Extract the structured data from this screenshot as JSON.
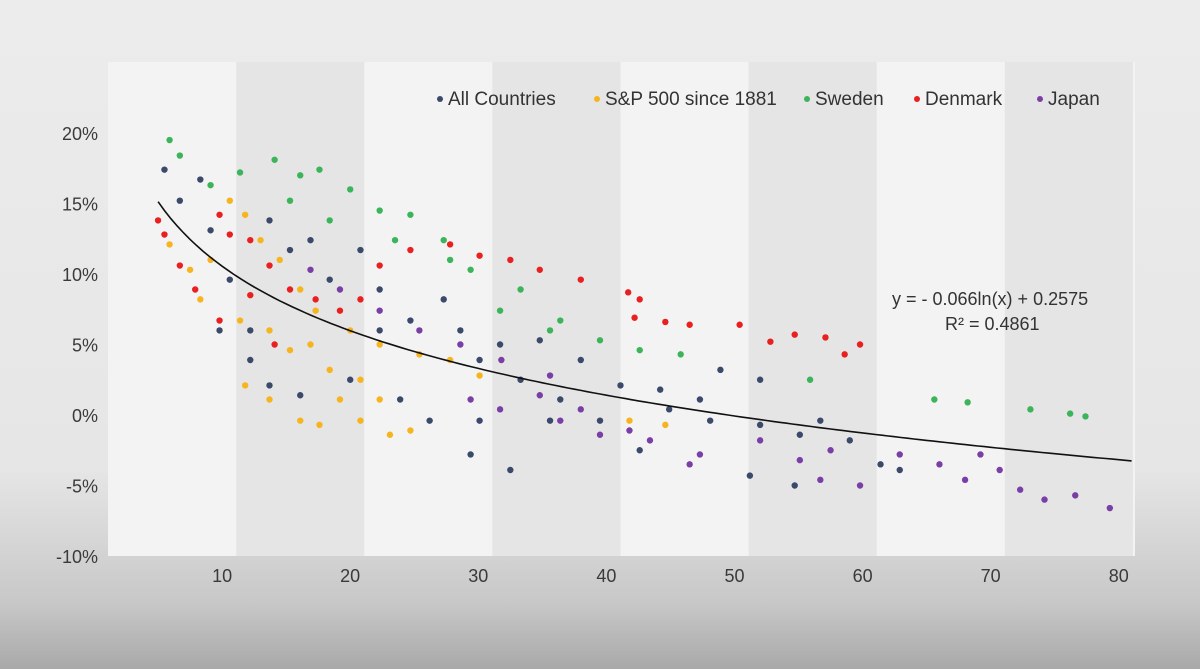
{
  "chart_data": {
    "type": "scatter",
    "title": "",
    "xlabel": "",
    "ylabel": "",
    "xlim": [
      0,
      81
    ],
    "ylim": [
      -10,
      20
    ],
    "x_ticks": [
      "10",
      "20",
      "30",
      "40",
      "50",
      "60",
      "70",
      "80"
    ],
    "x_tick_values": [
      10,
      20,
      30,
      40,
      50,
      60,
      70,
      80
    ],
    "y_ticks": [
      "20%",
      "15%",
      "10%",
      "5%",
      "0%",
      "-5%",
      "-10%"
    ],
    "y_tick_values": [
      20,
      15,
      10,
      5,
      0,
      -5,
      -10
    ],
    "grid": false,
    "legend_position": "top",
    "series": [
      {
        "name": "All Countries",
        "color": "#3b4a6b",
        "points": [
          [
            5.5,
            17.4
          ],
          [
            6.7,
            15.2
          ],
          [
            8.3,
            16.7
          ],
          [
            9.1,
            13.1
          ],
          [
            10.6,
            9.6
          ],
          [
            12.2,
            6
          ],
          [
            9.8,
            6
          ],
          [
            13.7,
            13.8
          ],
          [
            15.3,
            11.7
          ],
          [
            16.9,
            12.4
          ],
          [
            18.4,
            9.6
          ],
          [
            20.8,
            11.7
          ],
          [
            22.3,
            8.9
          ],
          [
            24.7,
            6.7
          ],
          [
            27.3,
            8.2
          ],
          [
            28.6,
            6
          ],
          [
            30.1,
            3.9
          ],
          [
            31.7,
            5
          ],
          [
            33.3,
            2.5
          ],
          [
            34.8,
            5.3
          ],
          [
            38,
            3.9
          ],
          [
            41.1,
            2.1
          ],
          [
            44.2,
            1.8
          ],
          [
            47.3,
            1.1
          ],
          [
            48.9,
            3.2
          ],
          [
            52,
            -0.7
          ],
          [
            55.1,
            -1.4
          ],
          [
            52,
            2.5
          ],
          [
            56.7,
            -0.4
          ],
          [
            59,
            -1.8
          ],
          [
            61.4,
            -3.5
          ],
          [
            62.9,
            -3.9
          ],
          [
            54.7,
            -5
          ],
          [
            51.2,
            -4.3
          ],
          [
            42.6,
            -2.5
          ],
          [
            39.5,
            -0.4
          ],
          [
            35.6,
            -0.4
          ],
          [
            32.5,
            -3.9
          ],
          [
            29.4,
            -2.8
          ],
          [
            26.2,
            -0.4
          ],
          [
            23.9,
            1.1
          ],
          [
            20,
            2.5
          ],
          [
            16.1,
            1.4
          ],
          [
            13.7,
            2.1
          ],
          [
            12.2,
            3.9
          ],
          [
            22.3,
            6
          ],
          [
            30.1,
            -0.4
          ],
          [
            36.4,
            1.1
          ],
          [
            44.9,
            0.4
          ],
          [
            48.1,
            -0.4
          ]
        ]
      },
      {
        "name": "S&P 500 since 1881",
        "color": "#f6b41e",
        "points": [
          [
            5.9,
            12.1
          ],
          [
            7.5,
            10.3
          ],
          [
            9.1,
            11
          ],
          [
            10.6,
            15.2
          ],
          [
            11.8,
            14.2
          ],
          [
            13,
            12.4
          ],
          [
            14.5,
            11
          ],
          [
            16.1,
            8.9
          ],
          [
            17.3,
            7.4
          ],
          [
            20,
            6
          ],
          [
            22.3,
            5
          ],
          [
            25.4,
            4.3
          ],
          [
            27.8,
            3.9
          ],
          [
            30.1,
            2.8
          ],
          [
            11.8,
            2.1
          ],
          [
            13.7,
            1.1
          ],
          [
            16.1,
            -0.4
          ],
          [
            17.6,
            -0.7
          ],
          [
            19.2,
            1.1
          ],
          [
            20.8,
            -0.4
          ],
          [
            23.1,
            -1.4
          ],
          [
            24.7,
            -1.1
          ],
          [
            15.3,
            4.6
          ],
          [
            18.4,
            3.2
          ],
          [
            20.8,
            2.5
          ],
          [
            22.3,
            1.1
          ],
          [
            11.4,
            6.7
          ],
          [
            13.7,
            6
          ],
          [
            16.9,
            5
          ],
          [
            41.8,
            -0.4
          ],
          [
            44.6,
            -0.7
          ],
          [
            8.3,
            8.2
          ]
        ]
      },
      {
        "name": "Sweden",
        "color": "#3cb45a",
        "points": [
          [
            5.9,
            19.5
          ],
          [
            6.7,
            18.4
          ],
          [
            9.1,
            16.3
          ],
          [
            11.4,
            17.2
          ],
          [
            14.1,
            18.1
          ],
          [
            16.1,
            17
          ],
          [
            17.6,
            17.4
          ],
          [
            20,
            16
          ],
          [
            22.3,
            14.5
          ],
          [
            24.7,
            14.2
          ],
          [
            27.3,
            12.4
          ],
          [
            29.4,
            10.3
          ],
          [
            33.3,
            8.9
          ],
          [
            36.4,
            6.7
          ],
          [
            39.5,
            5.3
          ],
          [
            42.6,
            4.6
          ],
          [
            45.8,
            4.3
          ],
          [
            55.9,
            2.5
          ],
          [
            65.6,
            1.1
          ],
          [
            68.2,
            0.9
          ],
          [
            73.1,
            0.4
          ],
          [
            76.2,
            0.1
          ],
          [
            77.4,
            -0.1
          ],
          [
            15.3,
            15.2
          ],
          [
            18.4,
            13.8
          ],
          [
            23.5,
            12.4
          ],
          [
            27.8,
            11
          ],
          [
            31.7,
            7.4
          ],
          [
            35.6,
            6
          ]
        ]
      },
      {
        "name": "Denmark",
        "color": "#e8201f",
        "points": [
          [
            5,
            13.8
          ],
          [
            5.5,
            12.8
          ],
          [
            6.7,
            10.6
          ],
          [
            7.9,
            8.9
          ],
          [
            9.8,
            14.2
          ],
          [
            10.6,
            12.8
          ],
          [
            12.2,
            12.4
          ],
          [
            13.7,
            10.6
          ],
          [
            15.3,
            8.9
          ],
          [
            17.3,
            8.2
          ],
          [
            19.2,
            7.4
          ],
          [
            20.8,
            8.2
          ],
          [
            22.3,
            10.6
          ],
          [
            24.7,
            11.7
          ],
          [
            27.8,
            12.1
          ],
          [
            30.1,
            11.3
          ],
          [
            32.5,
            11
          ],
          [
            34.8,
            10.3
          ],
          [
            38,
            9.6
          ],
          [
            41.7,
            8.7
          ],
          [
            42.6,
            8.2
          ],
          [
            42.2,
            6.9
          ],
          [
            44.6,
            6.6
          ],
          [
            46.5,
            6.4
          ],
          [
            50.4,
            6.4
          ],
          [
            52.8,
            5.2
          ],
          [
            54.7,
            5.7
          ],
          [
            57.1,
            5.5
          ],
          [
            58.6,
            4.3
          ],
          [
            59.8,
            5
          ],
          [
            14.1,
            5
          ],
          [
            9.8,
            6.7
          ],
          [
            12.2,
            8.5
          ]
        ]
      },
      {
        "name": "Japan",
        "color": "#7a3fa6",
        "points": [
          [
            16.9,
            10.3
          ],
          [
            19.2,
            8.9
          ],
          [
            22.3,
            7.4
          ],
          [
            25.4,
            6
          ],
          [
            28.6,
            5
          ],
          [
            31.8,
            3.9
          ],
          [
            35.6,
            2.8
          ],
          [
            31.7,
            0.4
          ],
          [
            36.4,
            -0.4
          ],
          [
            39.5,
            -1.4
          ],
          [
            43.4,
            -1.8
          ],
          [
            47.3,
            -2.8
          ],
          [
            52,
            -1.8
          ],
          [
            55.1,
            -3.2
          ],
          [
            57.5,
            -2.5
          ],
          [
            59.8,
            -5
          ],
          [
            62.9,
            -2.8
          ],
          [
            66,
            -3.5
          ],
          [
            68,
            -4.6
          ],
          [
            70.7,
            -3.9
          ],
          [
            72.3,
            -5.3
          ],
          [
            74.2,
            -6
          ],
          [
            76.6,
            -5.7
          ],
          [
            79.3,
            -6.6
          ],
          [
            69.2,
            -2.8
          ],
          [
            56.7,
            -4.6
          ],
          [
            46.5,
            -3.5
          ],
          [
            41.8,
            -1.1
          ],
          [
            38,
            0.4
          ],
          [
            29.4,
            1.1
          ],
          [
            34.8,
            1.4
          ]
        ]
      }
    ],
    "trendline": {
      "type": "logarithmic",
      "a": -0.066,
      "b": 0.2575,
      "x_range": [
        5,
        81
      ],
      "color": "#111111",
      "equation": "y = - 0.066ln(x) + 0.2575",
      "r_squared": "R² = 0.4861"
    }
  }
}
